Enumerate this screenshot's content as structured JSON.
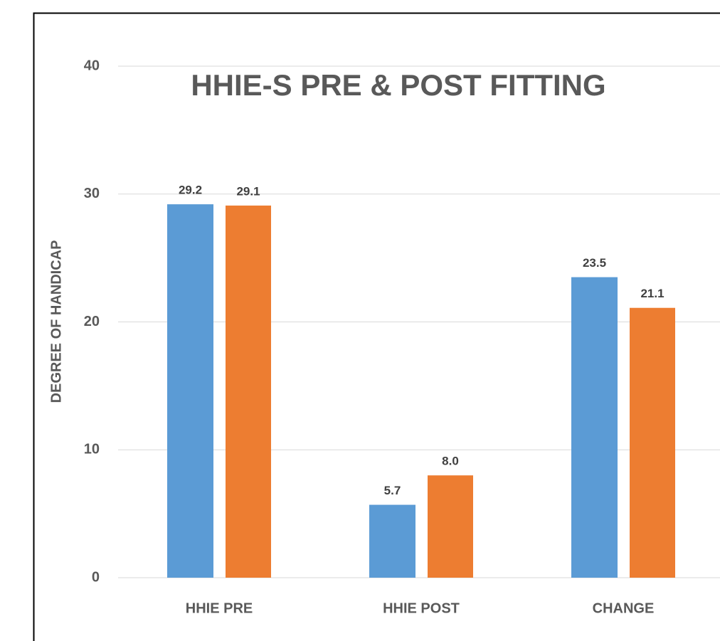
{
  "chart_data": {
    "type": "bar",
    "title": "HHIE-S PRE & POST FITTING",
    "y_label": "DEGREE OF HANDICAP",
    "categories": [
      "HHIE PRE",
      "HHIE POST",
      "CHANGE"
    ],
    "series": [
      {
        "color": "#5b9bd5",
        "values": [
          29.2,
          5.7,
          23.5
        ]
      },
      {
        "color": "#ed7d31",
        "values": [
          29.1,
          8.0,
          21.1
        ],
        "value_labels": [
          "29.1",
          "8.0",
          "21.1"
        ]
      }
    ],
    "ylim": [
      0,
      40
    ],
    "yticks": [
      0,
      10,
      20,
      30,
      40
    ],
    "grid": true
  }
}
